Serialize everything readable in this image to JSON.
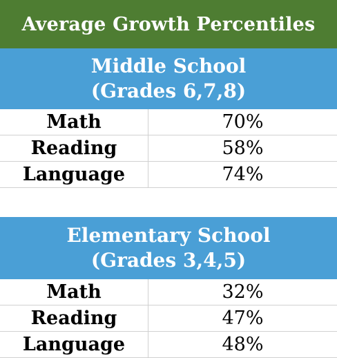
{
  "title": "Average Growth Percentiles",
  "colors": {
    "title_bg": "#4e7d32",
    "section_bg": "#4a9fd6",
    "header_text": "#ffffff"
  },
  "sections": [
    {
      "name": "Middle School",
      "grades": "(Grades 6,7,8)",
      "rows": [
        {
          "subject": "Math",
          "value": "70%"
        },
        {
          "subject": "Reading",
          "value": "58%"
        },
        {
          "subject": "Language",
          "value": "74%"
        }
      ]
    },
    {
      "name": "Elementary School",
      "grades": "(Grades 3,4,5)",
      "rows": [
        {
          "subject": "Math",
          "value": "32%"
        },
        {
          "subject": "Reading",
          "value": "47%"
        },
        {
          "subject": "Language",
          "value": "48%"
        }
      ]
    }
  ]
}
